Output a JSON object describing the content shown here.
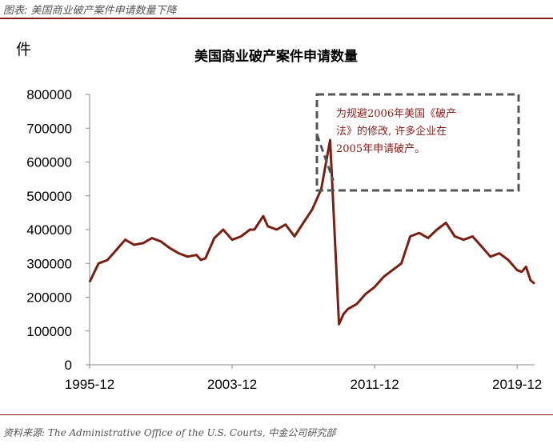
{
  "header": {
    "caption": "图表: 美国商业破产案件申请数量下降"
  },
  "footer": {
    "source": "资料来源: The Administrative Office of the U.S. Courts, 中金公司研究部"
  },
  "colors": {
    "line": "#7a1f12",
    "accent": "#8b1a1a",
    "axis": "#888888",
    "annotation_border": "#555555"
  },
  "chart_data": {
    "type": "line",
    "title": "美国商业破产案件申请数量",
    "ylabel": "件",
    "xlabel": "",
    "ylim": [
      0,
      800000
    ],
    "y_ticks": [
      "0",
      "100000",
      "200000",
      "300000",
      "400000",
      "500000",
      "600000",
      "700000",
      "800000"
    ],
    "x_tick_labels": [
      {
        "label": "1995-12",
        "x": 1995.92
      },
      {
        "label": "2003-12",
        "x": 2003.92
      },
      {
        "label": "2011-12",
        "x": 2011.92
      },
      {
        "label": "2019-12",
        "x": 2019.92
      }
    ],
    "xlim": [
      1995.92,
      2020.9
    ],
    "grid": false,
    "annotation": {
      "text_lines": [
        "为规避2006年美国《破产",
        "法》的修改, 许多企业在",
        "2005年申请破产。"
      ]
    },
    "series": [
      {
        "name": "",
        "x": [
          1995.92,
          1996.42,
          1996.92,
          1997.42,
          1997.92,
          1998.42,
          1998.92,
          1999.42,
          1999.92,
          2000.17,
          2000.42,
          2000.92,
          2001.42,
          2001.92,
          2002.17,
          2002.42,
          2002.92,
          2003.42,
          2003.92,
          2004.42,
          2004.92,
          2005.17,
          2005.42,
          2005.67,
          2005.92,
          2006.42,
          2006.92,
          2007.42,
          2007.92,
          2008.42,
          2008.92,
          2009.42,
          2009.92,
          2010.17,
          2010.42,
          2010.92,
          2011.42,
          2011.92,
          2012.42,
          2012.92,
          2013.42,
          2013.92,
          2014.42,
          2014.92,
          2015.42,
          2015.92,
          2016.42,
          2016.92,
          2017.42,
          2017.92,
          2018.42,
          2018.92,
          2019.42,
          2019.92,
          2020.17,
          2020.42,
          2020.67,
          2020.9
        ],
        "values": [
          245000,
          300000,
          310000,
          340000,
          370000,
          355000,
          360000,
          375000,
          365000,
          355000,
          345000,
          330000,
          320000,
          325000,
          310000,
          315000,
          375000,
          400000,
          370000,
          380000,
          400000,
          400000,
          420000,
          440000,
          410000,
          400000,
          415000,
          380000,
          420000,
          460000,
          520000,
          665000,
          120000,
          150000,
          165000,
          180000,
          210000,
          230000,
          260000,
          280000,
          300000,
          380000,
          390000,
          375000,
          400000,
          420000,
          380000,
          370000,
          380000,
          350000,
          320000,
          330000,
          310000,
          280000,
          275000,
          290000,
          250000,
          240000
        ]
      }
    ]
  }
}
